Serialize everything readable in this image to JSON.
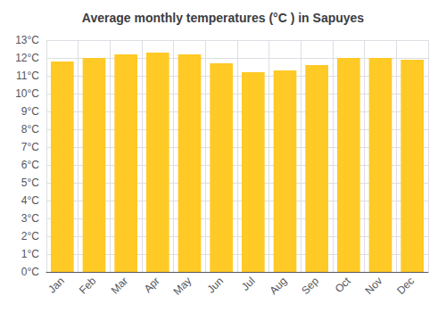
{
  "chart_data": {
    "type": "bar",
    "title": "Average monthly temperatures (°C ) in Sapuyes",
    "categories": [
      "Jan",
      "Feb",
      "Mar",
      "Apr",
      "May",
      "Jun",
      "Jul",
      "Aug",
      "Sep",
      "Oct",
      "Nov",
      "Dec"
    ],
    "values": [
      11.8,
      12.0,
      12.2,
      12.3,
      12.2,
      11.7,
      11.2,
      11.3,
      11.6,
      12.0,
      12.0,
      11.9
    ],
    "color": "#FFC926",
    "ylim": [
      0,
      13
    ],
    "yticks": [
      {
        "value": 0,
        "label": "0°C"
      },
      {
        "value": 1,
        "label": "1°C"
      },
      {
        "value": 2,
        "label": "2°C"
      },
      {
        "value": 3,
        "label": "3°C"
      },
      {
        "value": 4,
        "label": "4°C"
      },
      {
        "value": 5,
        "label": "5°C"
      },
      {
        "value": 6,
        "label": "6°C"
      },
      {
        "value": 7,
        "label": "7°C"
      },
      {
        "value": 8,
        "label": "8°C"
      },
      {
        "value": 9,
        "label": "9°C"
      },
      {
        "value": 10,
        "label": "10°C"
      },
      {
        "value": 11,
        "label": "11°C"
      },
      {
        "value": 12,
        "label": "12°C"
      },
      {
        "value": 13,
        "label": "13°C"
      }
    ],
    "grid": true
  }
}
